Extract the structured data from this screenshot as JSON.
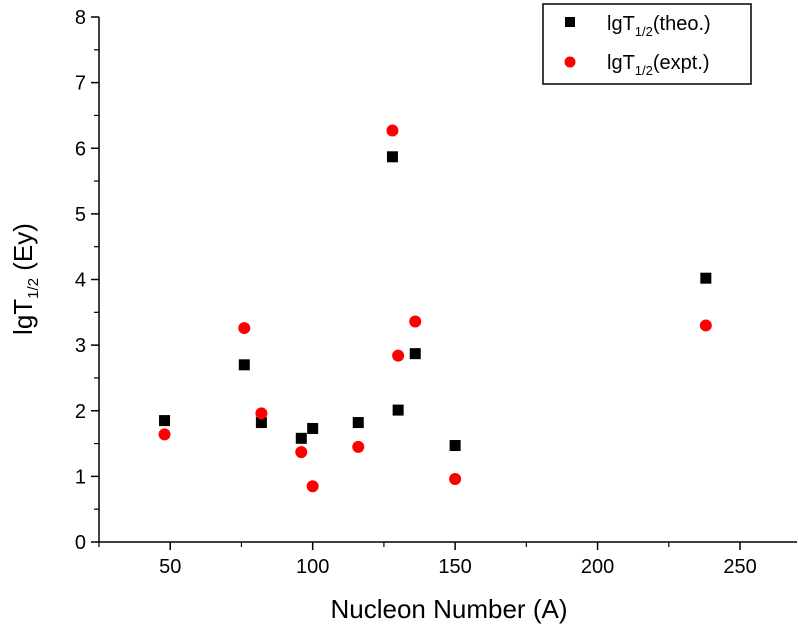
{
  "chart_data": {
    "type": "scatter",
    "xlabel": "Nucleon Number (A)",
    "ylabel": {
      "main": "lgT",
      "sub": "1/2",
      "rest": " (Ey)"
    },
    "xlim": [
      25,
      270
    ],
    "ylim": [
      0,
      8
    ],
    "xticks": [
      50,
      100,
      150,
      200,
      250
    ],
    "yticks": [
      0,
      1,
      2,
      3,
      4,
      5,
      6,
      7,
      8
    ],
    "grid": false,
    "legend_position": "top-right",
    "series": [
      {
        "name": {
          "main": "lgT",
          "sub": "1/2",
          "rest": "(theo.)"
        },
        "marker": "square",
        "color": "#000000",
        "points": [
          {
            "x": 48,
            "y": 1.85
          },
          {
            "x": 76,
            "y": 2.7
          },
          {
            "x": 82,
            "y": 1.82
          },
          {
            "x": 96,
            "y": 1.58
          },
          {
            "x": 100,
            "y": 1.73
          },
          {
            "x": 116,
            "y": 1.82
          },
          {
            "x": 128,
            "y": 5.87
          },
          {
            "x": 130,
            "y": 2.01
          },
          {
            "x": 136,
            "y": 2.87
          },
          {
            "x": 150,
            "y": 1.47
          },
          {
            "x": 238,
            "y": 4.02
          }
        ]
      },
      {
        "name": {
          "main": "lgT",
          "sub": "1/2",
          "rest": "(expt.)"
        },
        "marker": "circle",
        "color": "#ff0000",
        "points": [
          {
            "x": 48,
            "y": 1.64
          },
          {
            "x": 76,
            "y": 3.26
          },
          {
            "x": 82,
            "y": 1.96
          },
          {
            "x": 96,
            "y": 1.37
          },
          {
            "x": 100,
            "y": 0.85
          },
          {
            "x": 116,
            "y": 1.45
          },
          {
            "x": 128,
            "y": 6.27
          },
          {
            "x": 130,
            "y": 2.84
          },
          {
            "x": 136,
            "y": 3.36
          },
          {
            "x": 150,
            "y": 0.96
          },
          {
            "x": 238,
            "y": 3.3
          }
        ]
      }
    ]
  }
}
